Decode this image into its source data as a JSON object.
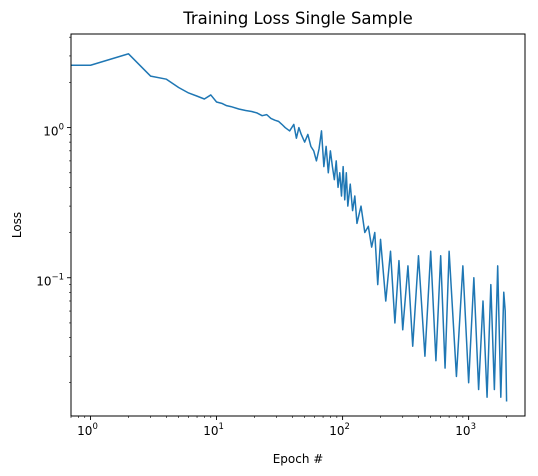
{
  "chart_data": {
    "type": "line",
    "title": "Training Loss Single Sample",
    "xlabel": "Epoch #",
    "ylabel": "Loss",
    "xscale": "log",
    "yscale": "log",
    "xlim": [
      0.7,
      2800
    ],
    "ylim": [
      0.012,
      4.2
    ],
    "grid": false,
    "legend": "none",
    "color": "#1f77b4",
    "x_ticks": [
      {
        "value": 1,
        "base": "10",
        "exp": "0"
      },
      {
        "value": 10,
        "base": "10",
        "exp": "1"
      },
      {
        "value": 100,
        "base": "10",
        "exp": "2"
      },
      {
        "value": 1000,
        "base": "10",
        "exp": "3"
      }
    ],
    "y_ticks": [
      {
        "value": 1,
        "base": "10",
        "exp": "0"
      },
      {
        "value": 0.1,
        "base": "10",
        "exp": "−1"
      }
    ],
    "series": [
      {
        "x": [
          0.7,
          1,
          2,
          3,
          4,
          5,
          6,
          7,
          8,
          9,
          10,
          11,
          12,
          13,
          15,
          17,
          19,
          21,
          23,
          25,
          27,
          29,
          31,
          33,
          35,
          38,
          41,
          43,
          45,
          47,
          50,
          53,
          56,
          59,
          62,
          65,
          68,
          71,
          74,
          77,
          80,
          83,
          86,
          89,
          92,
          95,
          98,
          101,
          104,
          107,
          110,
          115,
          120,
          125,
          130,
          140,
          150,
          160,
          170,
          180,
          190,
          200,
          220,
          240,
          260,
          280,
          300,
          330,
          360,
          400,
          450,
          500,
          550,
          600,
          650,
          700,
          800,
          900,
          1000,
          1100,
          1200,
          1300,
          1400,
          1500,
          1600,
          1700,
          1800,
          1900,
          1950,
          2000
        ],
        "y": [
          2.6,
          2.6,
          3.1,
          2.2,
          2.1,
          1.85,
          1.7,
          1.62,
          1.55,
          1.65,
          1.48,
          1.45,
          1.4,
          1.38,
          1.33,
          1.3,
          1.28,
          1.25,
          1.2,
          1.22,
          1.15,
          1.12,
          1.1,
          1.05,
          1.0,
          0.95,
          1.05,
          0.85,
          1.0,
          0.9,
          0.8,
          0.9,
          0.75,
          0.7,
          0.6,
          0.72,
          0.95,
          0.55,
          0.75,
          0.5,
          0.7,
          0.55,
          0.45,
          0.6,
          0.4,
          0.5,
          0.35,
          0.55,
          0.33,
          0.5,
          0.3,
          0.42,
          0.28,
          0.35,
          0.23,
          0.3,
          0.2,
          0.22,
          0.16,
          0.2,
          0.09,
          0.18,
          0.07,
          0.15,
          0.05,
          0.13,
          0.045,
          0.12,
          0.035,
          0.14,
          0.03,
          0.15,
          0.028,
          0.14,
          0.025,
          0.15,
          0.022,
          0.12,
          0.02,
          0.1,
          0.018,
          0.07,
          0.016,
          0.09,
          0.018,
          0.12,
          0.016,
          0.08,
          0.06,
          0.015
        ]
      }
    ]
  }
}
